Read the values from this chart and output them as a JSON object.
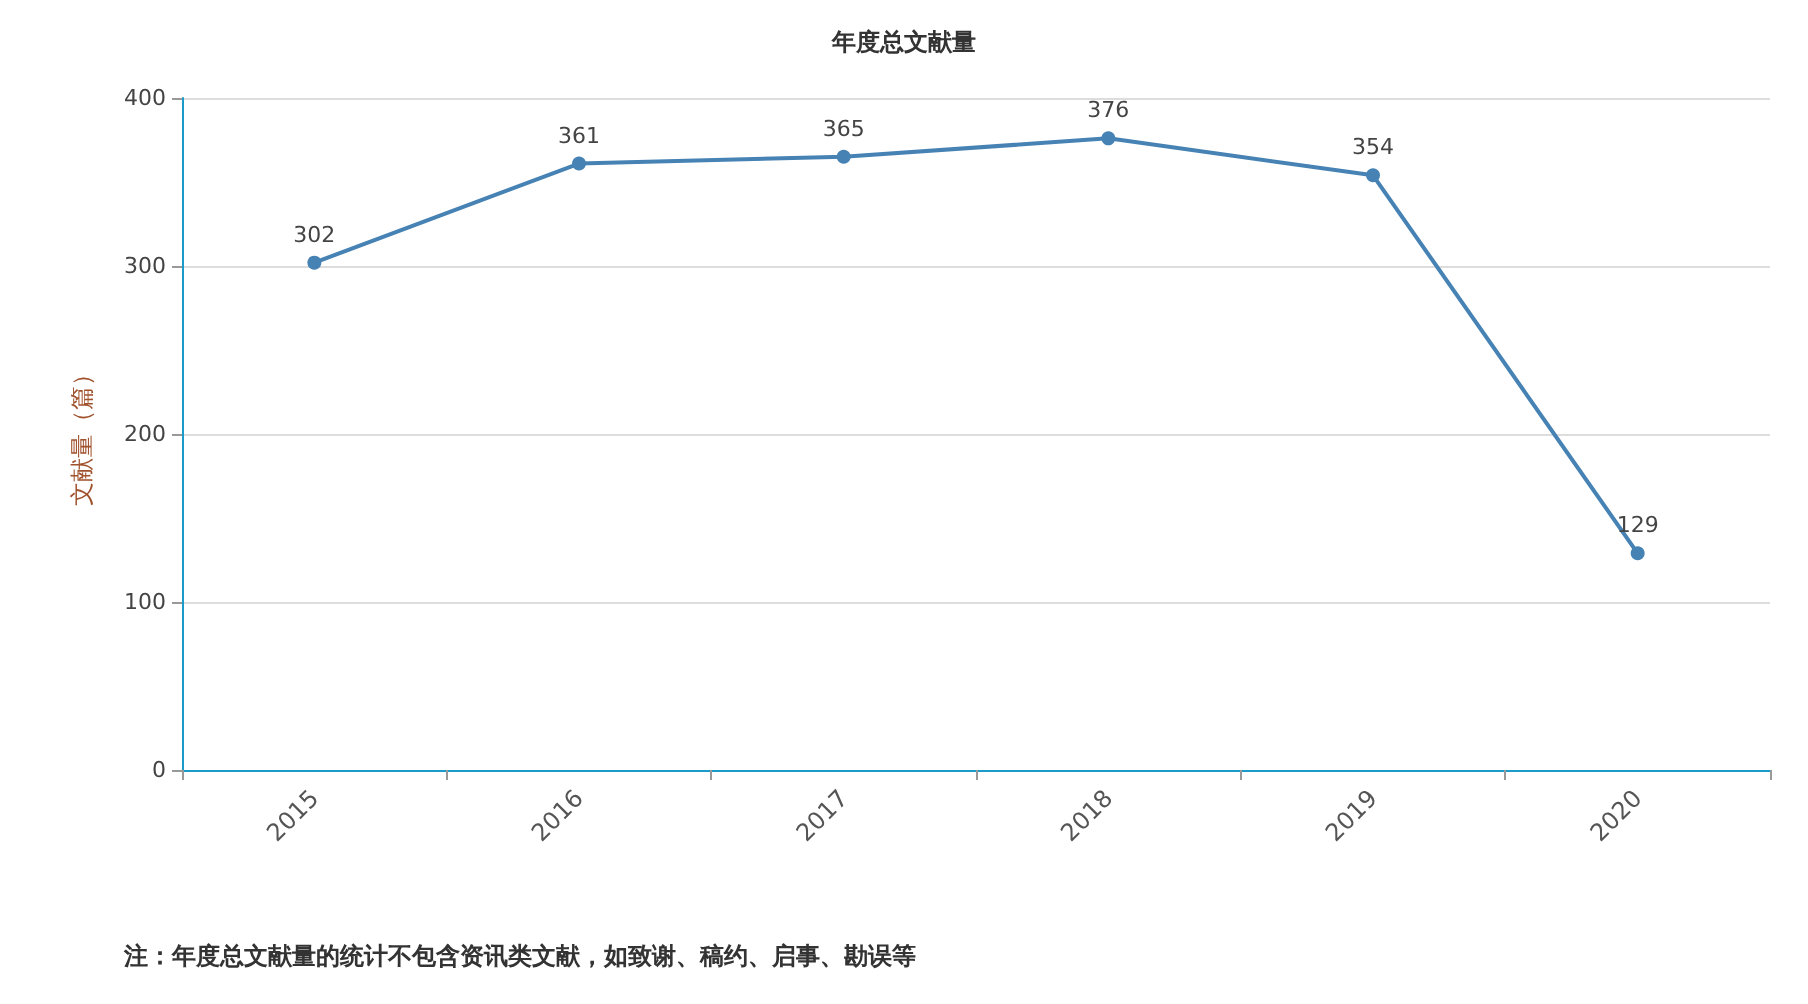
{
  "chart_data": {
    "type": "line",
    "title": "年度总文献量",
    "ylabel": "文献量（篇）",
    "categories": [
      "2015",
      "2016",
      "2017",
      "2018",
      "2019",
      "2020"
    ],
    "series": [
      {
        "color": "#4682b4",
        "values": [
          302,
          361,
          365,
          376,
          354,
          129
        ]
      }
    ],
    "ylim": [
      0,
      400
    ],
    "yticks": [
      0,
      100,
      200,
      300,
      400
    ],
    "grid": "y",
    "marker": "circle",
    "line_style": "solid",
    "data_labels": true,
    "annotations": [
      "注：年度总文献量的统计不包含资讯类文献，如致谢、稿约、启事、勘误等"
    ]
  }
}
